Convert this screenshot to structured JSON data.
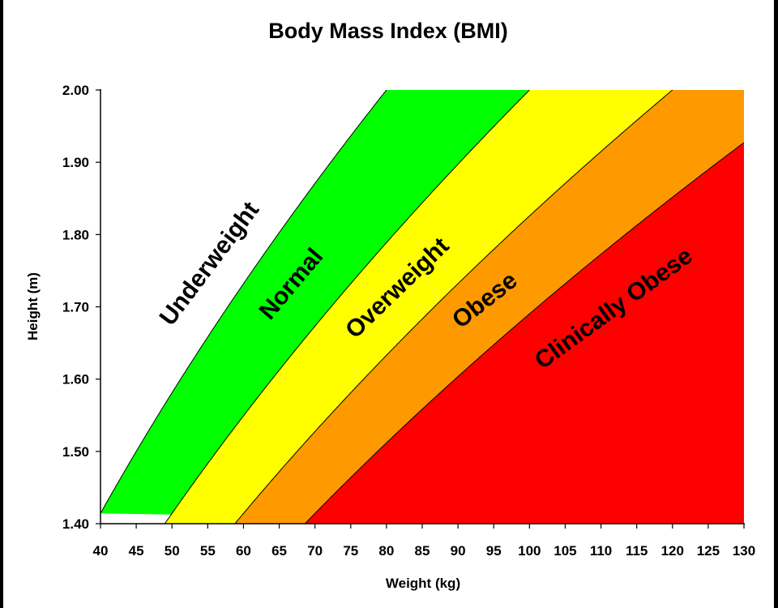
{
  "chart_data": {
    "type": "area",
    "title": "Body Mass Index (BMI)",
    "xlabel": "Weight (kg)",
    "ylabel": "Height (m)",
    "xlim": [
      40,
      130
    ],
    "ylim": [
      1.4,
      2.0
    ],
    "x_ticks": [
      40,
      45,
      50,
      55,
      60,
      65,
      70,
      75,
      80,
      85,
      90,
      95,
      100,
      105,
      110,
      115,
      120,
      125,
      130
    ],
    "y_ticks": [
      1.4,
      1.5,
      1.6,
      1.7,
      1.8,
      1.9,
      2.0
    ],
    "x_tick_labels": [
      "40",
      "45",
      "50",
      "55",
      "60",
      "65",
      "70",
      "75",
      "80",
      "85",
      "90",
      "95",
      "100",
      "105",
      "110",
      "115",
      "120",
      "125",
      "130"
    ],
    "y_tick_labels": [
      "1.40",
      "1.50",
      "1.60",
      "1.70",
      "1.80",
      "1.90",
      "2.00"
    ],
    "grid": false,
    "legend": "none",
    "bmi_boundaries": [
      20,
      25,
      30,
      35
    ],
    "bands": [
      {
        "name": "Underweight",
        "bmi_min": null,
        "bmi_max": 20,
        "color": "#ffffff"
      },
      {
        "name": "Normal",
        "bmi_min": 20,
        "bmi_max": 25,
        "color": "#00ff00"
      },
      {
        "name": "Overweight",
        "bmi_min": 25,
        "bmi_max": 30,
        "color": "#ffff00"
      },
      {
        "name": "Obese",
        "bmi_min": 30,
        "bmi_max": 35,
        "color": "#ff9900"
      },
      {
        "name": "Clinically Obese",
        "bmi_min": 35,
        "bmi_max": null,
        "color": "#ff0000"
      }
    ],
    "annotations": [
      "Underweight",
      "Normal",
      "Overweight",
      "Obese",
      "Clinically Obese"
    ]
  }
}
